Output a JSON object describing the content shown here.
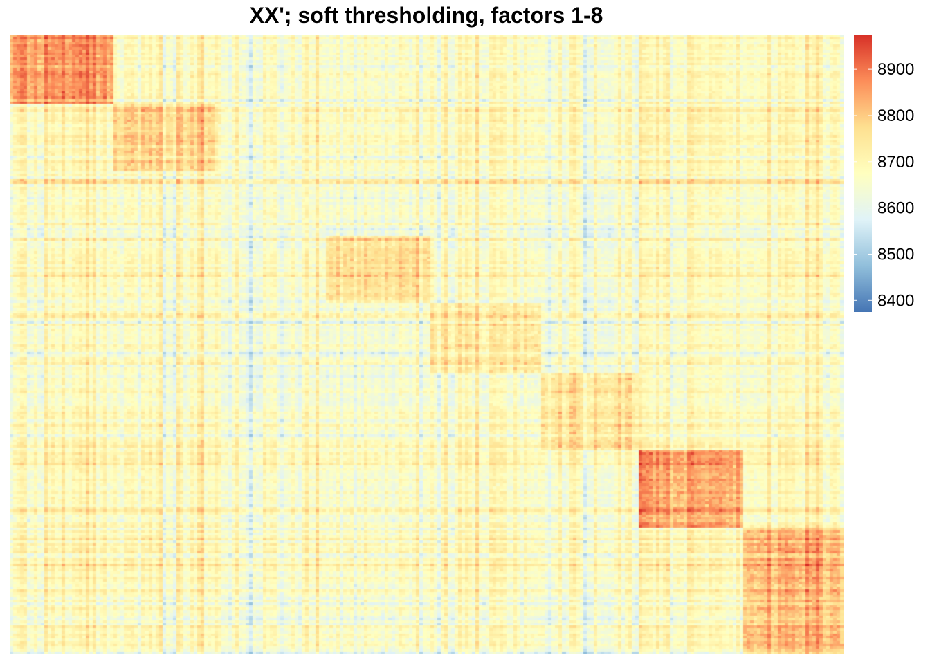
{
  "chart_data": {
    "type": "heatmap",
    "title": "XX'; soft thresholding, factors 1-8",
    "xlabel": "",
    "ylabel": "",
    "grid": false,
    "legend": "right",
    "n_rows": 240,
    "n_cols": 240,
    "value_range": [
      8375,
      8975
    ],
    "colorbar_ticks": [
      8400,
      8500,
      8600,
      8700,
      8800,
      8900
    ],
    "colorscale": [
      "#4575b4",
      "#91bfdb",
      "#e0f3f8",
      "#ffffbf",
      "#fee090",
      "#fc8d59",
      "#d73027"
    ],
    "background_level": 8690,
    "blocks": [
      {
        "factor": 1,
        "rows": [
          0,
          27
        ],
        "cols": [
          0,
          30
        ],
        "level": 8865
      },
      {
        "factor": 2,
        "rows": [
          27,
          53
        ],
        "cols": [
          30,
          59
        ],
        "level": 8780
      },
      {
        "factor": 3,
        "rows": [
          53,
          78
        ],
        "cols": [
          59,
          91
        ],
        "level": 8660
      },
      {
        "factor": 4,
        "rows": [
          78,
          104
        ],
        "cols": [
          91,
          121
        ],
        "level": 8770
      },
      {
        "factor": 5,
        "rows": [
          104,
          131
        ],
        "cols": [
          121,
          153
        ],
        "level": 8740
      },
      {
        "factor": 6,
        "rows": [
          131,
          161
        ],
        "cols": [
          153,
          181
        ],
        "level": 8760
      },
      {
        "factor": 7,
        "rows": [
          161,
          191
        ],
        "cols": [
          181,
          211
        ],
        "level": 8840
      },
      {
        "factor": 8,
        "rows": [
          191,
          240
        ],
        "cols": [
          211,
          240
        ],
        "level": 8820
      }
    ]
  }
}
